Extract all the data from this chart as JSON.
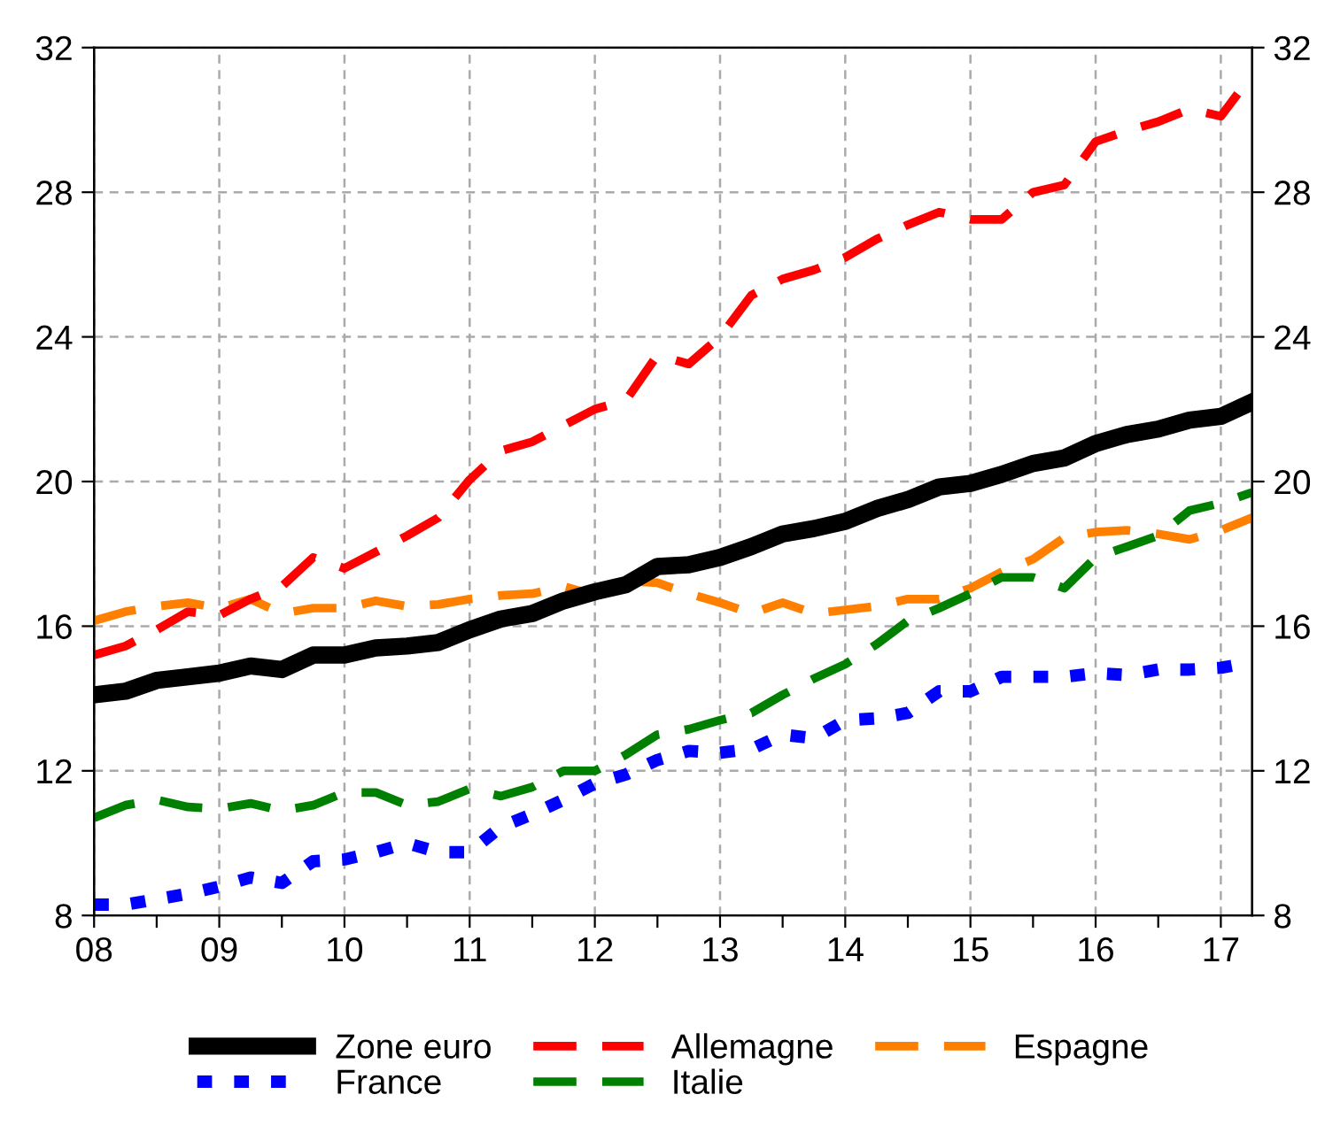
{
  "chart_data": {
    "type": "line",
    "x": [
      2008,
      2008.25,
      2008.5,
      2008.75,
      2009,
      2009.25,
      2009.5,
      2009.75,
      2010,
      2010.25,
      2010.5,
      2010.75,
      2011,
      2011.25,
      2011.5,
      2011.75,
      2012,
      2012.25,
      2012.5,
      2012.75,
      2013,
      2013.25,
      2013.5,
      2013.75,
      2014,
      2014.25,
      2014.5,
      2014.75,
      2015,
      2015.25,
      2015.5,
      2015.75,
      2016,
      2016.25,
      2016.5,
      2016.75,
      2017,
      2017.25
    ],
    "series": [
      {
        "name": "Zone euro",
        "color": "#000000",
        "line_style": "solid",
        "values": [
          14.1,
          14.2,
          14.5,
          14.6,
          14.7,
          14.9,
          14.8,
          15.2,
          15.2,
          15.4,
          15.45,
          15.55,
          15.9,
          16.2,
          16.35,
          16.7,
          16.95,
          17.15,
          17.65,
          17.7,
          17.9,
          18.2,
          18.55,
          18.7,
          18.9,
          19.25,
          19.5,
          19.85,
          19.95,
          20.2,
          20.5,
          20.65,
          21.05,
          21.3,
          21.45,
          21.7,
          21.8,
          22.2
        ]
      },
      {
        "name": "France",
        "color": "#0000ff",
        "line_style": "dotted",
        "values": [
          8.3,
          8.3,
          8.45,
          8.6,
          8.8,
          9.05,
          8.9,
          9.5,
          9.55,
          9.75,
          10.0,
          9.75,
          9.75,
          10.45,
          10.8,
          11.2,
          11.65,
          11.9,
          12.3,
          12.55,
          12.5,
          12.6,
          13.0,
          12.9,
          13.4,
          13.45,
          13.6,
          14.2,
          14.2,
          14.6,
          14.6,
          14.6,
          14.7,
          14.65,
          14.8,
          14.8,
          14.85,
          15.0
        ]
      },
      {
        "name": "Allemagne",
        "color": "#ff0000",
        "line_style": "dashed",
        "values": [
          15.2,
          15.45,
          15.9,
          16.4,
          16.3,
          16.75,
          17.1,
          17.9,
          17.6,
          18.05,
          18.5,
          19.0,
          20.05,
          20.85,
          21.1,
          21.55,
          22.0,
          22.25,
          23.5,
          23.25,
          24.0,
          25.15,
          25.6,
          25.85,
          26.2,
          26.7,
          27.1,
          27.45,
          27.25,
          27.25,
          28.0,
          28.2,
          29.4,
          29.7,
          29.95,
          30.3,
          30.1,
          31.25
        ]
      },
      {
        "name": "Italie",
        "color": "#008000",
        "line_style": "dashed",
        "values": [
          10.7,
          11.05,
          11.2,
          11.0,
          10.95,
          11.1,
          10.9,
          11.05,
          11.4,
          11.4,
          11.05,
          11.15,
          11.5,
          11.3,
          11.55,
          12.0,
          12.0,
          12.45,
          13.0,
          13.15,
          13.4,
          13.6,
          14.1,
          14.55,
          14.95,
          15.5,
          16.15,
          16.5,
          16.9,
          17.35,
          17.35,
          17.05,
          17.9,
          18.2,
          18.5,
          19.2,
          19.4,
          19.7
        ]
      },
      {
        "name": "Espagne",
        "color": "#ff8000",
        "line_style": "dashed",
        "values": [
          16.15,
          16.4,
          16.55,
          16.65,
          16.5,
          16.75,
          16.35,
          16.5,
          16.5,
          16.7,
          16.55,
          16.6,
          16.75,
          16.85,
          16.9,
          17.1,
          16.85,
          17.25,
          17.2,
          16.9,
          16.65,
          16.35,
          16.65,
          16.35,
          16.45,
          16.55,
          16.75,
          16.75,
          17.05,
          17.5,
          17.85,
          18.45,
          18.6,
          18.65,
          18.55,
          18.4,
          18.65,
          19.0
        ]
      }
    ],
    "xlim": [
      2008,
      2017.25
    ],
    "xticks": [
      {
        "value": 2008,
        "label": "08"
      },
      {
        "value": 2008.5,
        "label": null
      },
      {
        "value": 2009,
        "label": "09"
      },
      {
        "value": 2009.5,
        "label": null
      },
      {
        "value": 2010,
        "label": "10"
      },
      {
        "value": 2010.5,
        "label": null
      },
      {
        "value": 2011,
        "label": "11"
      },
      {
        "value": 2011.5,
        "label": null
      },
      {
        "value": 2012,
        "label": "12"
      },
      {
        "value": 2012.5,
        "label": null
      },
      {
        "value": 2013,
        "label": "13"
      },
      {
        "value": 2013.5,
        "label": null
      },
      {
        "value": 2014,
        "label": "14"
      },
      {
        "value": 2014.5,
        "label": null
      },
      {
        "value": 2015,
        "label": "15"
      },
      {
        "value": 2015.5,
        "label": null
      },
      {
        "value": 2016,
        "label": "16"
      },
      {
        "value": 2016.5,
        "label": null
      },
      {
        "value": 2017,
        "label": "17"
      }
    ],
    "ylim": [
      8,
      32
    ],
    "yticks": [
      8,
      12,
      16,
      20,
      24,
      28,
      32
    ],
    "y2lim": [
      8,
      32
    ],
    "y2ticks": [
      8,
      12,
      16,
      20,
      24,
      28,
      32
    ],
    "grid": true,
    "legend": "bottom"
  }
}
